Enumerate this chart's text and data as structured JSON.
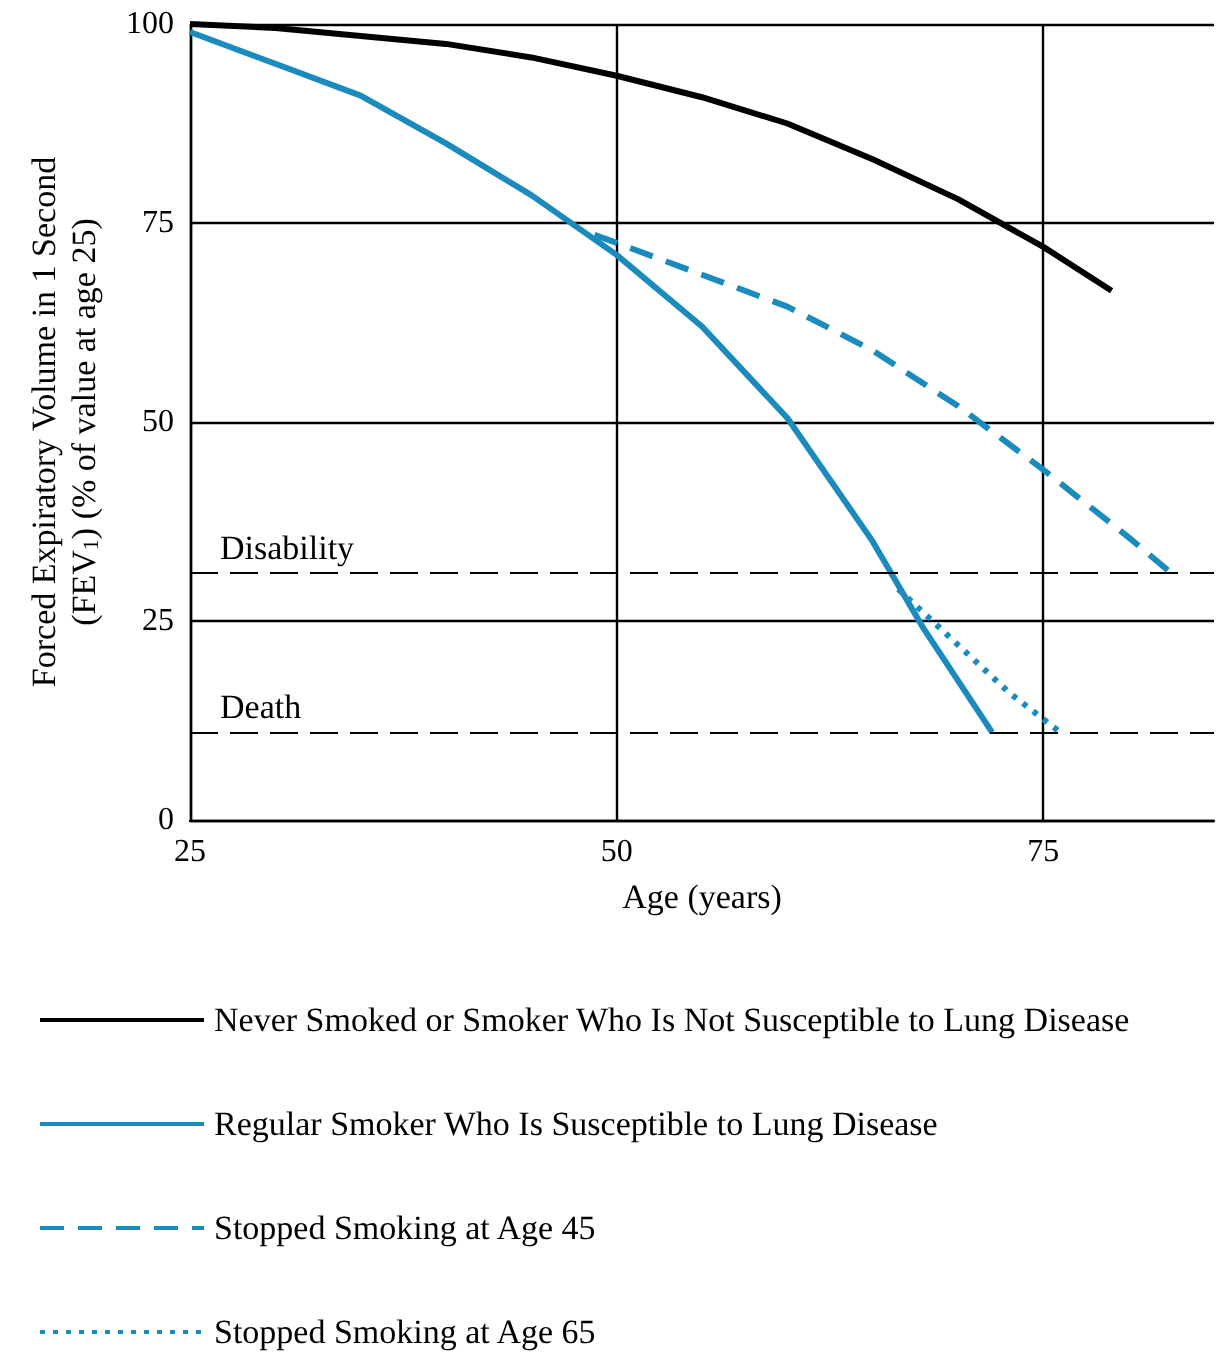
{
  "chart_data": {
    "type": "line",
    "xlabel": "Age (years)",
    "ylabel": "Forced Expiratory Volume in 1 Second (FEV$_{1}$) (% of value at age 25)",
    "xlim": [
      25,
      85
    ],
    "xticks": [
      25,
      50,
      75
    ],
    "ylim": [
      0,
      100
    ],
    "yticks": [
      0,
      25,
      50,
      75,
      100
    ],
    "grid": true,
    "legend": "bottom",
    "marker": "none",
    "series": [
      {
        "name": "Never Smoked or Smoker Who Is Not Susceptible to Lung Disease",
        "color": "#000000",
        "line_style": "solid",
        "x": [
          25,
          30,
          35,
          40,
          45,
          50,
          55,
          60,
          65,
          70,
          75,
          79
        ],
        "values": [
          100,
          99.5,
          98.5,
          97.5,
          95.8,
          93.5,
          90.8,
          87.5,
          83,
          78,
          72,
          66.5
        ]
      },
      {
        "name": "Regular Smoker Who Is Susceptible to Lung Disease",
        "color": "#1b8bbd",
        "line_style": "solid",
        "x": [
          25,
          30,
          35,
          40,
          45,
          50,
          55,
          60,
          65,
          68,
          72
        ],
        "values": [
          99,
          95,
          91,
          85,
          78.5,
          71,
          62,
          50.5,
          35,
          24,
          11
        ]
      },
      {
        "name": "Stopped Smoking at Age 45",
        "color": "#1b8bbd",
        "line_style": "dashed",
        "x": [
          48.7,
          50,
          55,
          60,
          65,
          70,
          75,
          80,
          82.5
        ],
        "values": [
          73.5,
          72.5,
          68.5,
          64.5,
          59,
          52,
          44,
          35.5,
          31
        ]
      },
      {
        "name": "Stopped Smoking at Age 65",
        "color": "#1b8bbd",
        "line_style": "dotted",
        "x": [
          66.5,
          70,
          73,
          76
        ],
        "values": [
          29,
          22,
          16,
          11
        ]
      }
    ],
    "ref_lines": [
      {
        "axis": "y",
        "value": 31,
        "label": "Disability",
        "line_style": "dashed"
      },
      {
        "axis": "y",
        "value": 11,
        "label": "Death",
        "line_style": "dashed"
      }
    ]
  }
}
